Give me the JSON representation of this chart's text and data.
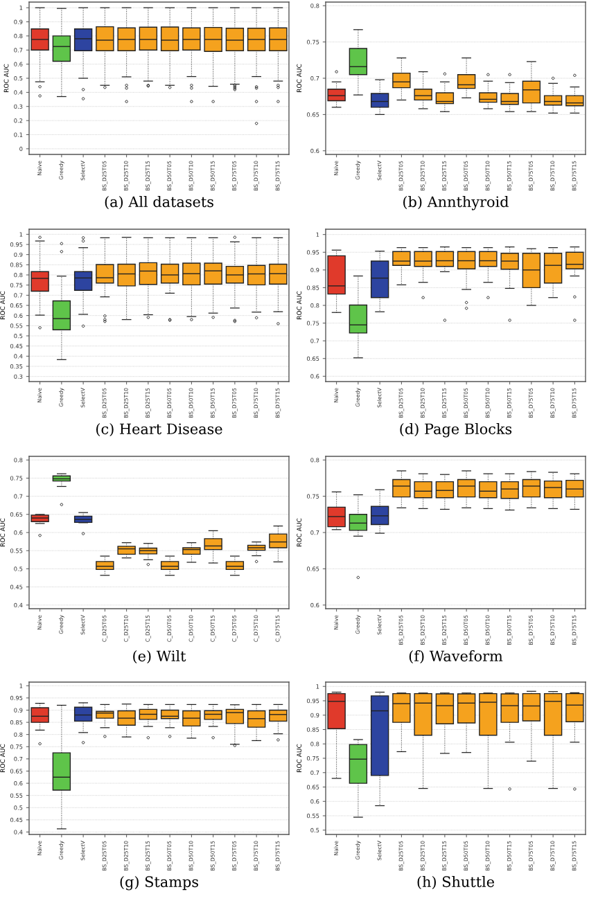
{
  "chart_data": [
    {
      "type": "box",
      "title": "(a) All datasets",
      "ylabel": "ROC AUC",
      "grid": "y",
      "marker": "circle",
      "line_style": "dotted",
      "categories": [
        "Naive",
        "Greedy",
        "SelectV",
        "BS_D25T05",
        "BS_D25T10",
        "BS_D25T15",
        "BS_D50T05",
        "BS_D50T10",
        "BS_D50T15",
        "BS_D75T05",
        "BS_D75T10",
        "BS_D75T15"
      ],
      "colors": [
        "#e03a2b",
        "#5fc44a",
        "#2d44a0",
        "#f5a21e",
        "#f5a21e",
        "#f5a21e",
        "#f5a21e",
        "#f5a21e",
        "#f5a21e",
        "#f5a21e",
        "#f5a21e",
        "#f5a21e"
      ],
      "ylim": [
        -0.04,
        1.04
      ],
      "yticks": [
        0,
        0.1,
        0.2,
        0.3,
        0.4,
        0.5,
        0.6,
        0.7,
        0.8,
        0.9,
        1
      ],
      "boxes": [
        {
          "low": 0.475,
          "q1": 0.7,
          "median": 0.775,
          "q3": 0.85,
          "high": 1,
          "outliers": [
            0.44,
            0.375
          ]
        },
        {
          "low": 0.37,
          "q1": 0.62,
          "median": 0.725,
          "q3": 0.8,
          "high": 0.995
        },
        {
          "low": 0.5,
          "q1": 0.695,
          "median": 0.78,
          "q3": 0.85,
          "high": 1,
          "outliers": [
            0.42,
            0.355
          ]
        },
        {
          "low": 0.45,
          "q1": 0.695,
          "median": 0.77,
          "q3": 0.865,
          "high": 1,
          "outliers": [
            0.435
          ]
        },
        {
          "low": 0.51,
          "q1": 0.695,
          "median": 0.775,
          "q3": 0.857,
          "high": 1,
          "outliers": [
            0.45,
            0.43,
            0.335
          ]
        },
        {
          "low": 0.48,
          "q1": 0.7,
          "median": 0.775,
          "q3": 0.862,
          "high": 1,
          "outliers": [
            0.45,
            0.445
          ]
        },
        {
          "low": 0.45,
          "q1": 0.695,
          "median": 0.77,
          "q3": 0.863,
          "high": 1,
          "outliers": [
            0.435
          ]
        },
        {
          "low": 0.512,
          "q1": 0.7,
          "median": 0.775,
          "q3": 0.857,
          "high": 1,
          "outliers": [
            0.45,
            0.43,
            0.335
          ]
        },
        {
          "low": 0.443,
          "q1": 0.69,
          "median": 0.775,
          "q3": 0.86,
          "high": 1,
          "outliers": [
            0.335
          ]
        },
        {
          "low": 0.458,
          "q1": 0.695,
          "median": 0.77,
          "q3": 0.855,
          "high": 1,
          "outliers": [
            0.45,
            0.44,
            0.43,
            0.42
          ]
        },
        {
          "low": 0.512,
          "q1": 0.695,
          "median": 0.775,
          "q3": 0.855,
          "high": 1,
          "outliers": [
            0.44,
            0.43,
            0.335,
            0.18
          ]
        },
        {
          "low": 0.48,
          "q1": 0.695,
          "median": 0.775,
          "q3": 0.857,
          "high": 1,
          "outliers": [
            0.45,
            0.435,
            0.335
          ]
        }
      ]
    },
    {
      "type": "box",
      "title": "(b) Annthyroid",
      "ylabel": "ROC AUC",
      "grid": "y",
      "marker": "circle",
      "line_style": "dotted",
      "categories": [
        "Naive",
        "Greedy",
        "SelectV",
        "BS_D25T05",
        "BS_D25T10",
        "BS_D25T15",
        "BS_D50T05",
        "BS_D50T10",
        "BS_D50T15",
        "BS_D75T05",
        "BS_D75T10",
        "BS_D75T15"
      ],
      "colors": [
        "#e03a2b",
        "#5fc44a",
        "#2d44a0",
        "#f5a21e",
        "#f5a21e",
        "#f5a21e",
        "#f5a21e",
        "#f5a21e",
        "#f5a21e",
        "#f5a21e",
        "#f5a21e",
        "#f5a21e"
      ],
      "ylim": [
        0.595,
        0.805
      ],
      "yticks": [
        0.6,
        0.65,
        0.7,
        0.75,
        0.8
      ],
      "boxes": [
        {
          "low": 0.66,
          "q1": 0.669,
          "median": 0.676,
          "q3": 0.685,
          "high": 0.695,
          "outliers": [
            0.709
          ]
        },
        {
          "low": 0.677,
          "q1": 0.705,
          "median": 0.716,
          "q3": 0.741,
          "high": 0.767
        },
        {
          "low": 0.65,
          "q1": 0.66,
          "median": 0.668,
          "q3": 0.679,
          "high": 0.698
        },
        {
          "low": 0.67,
          "q1": 0.687,
          "median": 0.695,
          "q3": 0.707,
          "high": 0.728
        },
        {
          "low": 0.658,
          "q1": 0.67,
          "median": 0.676,
          "q3": 0.685,
          "high": 0.709
        },
        {
          "low": 0.654,
          "q1": 0.665,
          "median": 0.668,
          "q3": 0.68,
          "high": 0.695,
          "outliers": [
            0.706
          ]
        },
        {
          "low": 0.673,
          "q1": 0.686,
          "median": 0.691,
          "q3": 0.705,
          "high": 0.728
        },
        {
          "low": 0.658,
          "q1": 0.667,
          "median": 0.671,
          "q3": 0.68,
          "high": 0.696,
          "outliers": [
            0.705
          ]
        },
        {
          "low": 0.654,
          "q1": 0.664,
          "median": 0.668,
          "q3": 0.679,
          "high": 0.694,
          "outliers": [
            0.705
          ]
        },
        {
          "low": 0.654,
          "q1": 0.666,
          "median": 0.684,
          "q3": 0.696,
          "high": 0.723
        },
        {
          "low": 0.652,
          "q1": 0.663,
          "median": 0.668,
          "q3": 0.676,
          "high": 0.693,
          "outliers": [
            0.7
          ]
        },
        {
          "low": 0.652,
          "q1": 0.662,
          "median": 0.666,
          "q3": 0.676,
          "high": 0.688,
          "outliers": [
            0.704
          ]
        }
      ]
    },
    {
      "type": "box",
      "title": "(c) Heart Disease",
      "ylabel": "ROC AUC",
      "grid": "y",
      "marker": "circle",
      "line_style": "dotted",
      "categories": [
        "Naive",
        "Greedy",
        "SelectV",
        "BS_D25T05",
        "BS_D25T10",
        "BS_D25T15",
        "BS_D50T05",
        "BS_D50T10",
        "BS_D50T15",
        "BS_D75T05",
        "BS_D75T10",
        "BS_D75T15"
      ],
      "colors": [
        "#e03a2b",
        "#5fc44a",
        "#2d44a0",
        "#f5a21e",
        "#f5a21e",
        "#f5a21e",
        "#f5a21e",
        "#f5a21e",
        "#f5a21e",
        "#f5a21e",
        "#f5a21e",
        "#f5a21e"
      ],
      "ylim": [
        0.275,
        1.025
      ],
      "yticks": [
        0.3,
        0.35,
        0.4,
        0.45,
        0.5,
        0.55,
        0.6,
        0.65,
        0.7,
        0.75,
        0.8,
        0.85,
        0.9,
        0.95,
        1
      ],
      "boxes": [
        {
          "low": 0.602,
          "q1": 0.72,
          "median": 0.783,
          "q3": 0.816,
          "high": 0.967,
          "outliers": [
            0.985,
            0.54
          ]
        },
        {
          "low": 0.383,
          "q1": 0.53,
          "median": 0.585,
          "q3": 0.672,
          "high": 0.794,
          "outliers": [
            0.954,
            0.915
          ]
        },
        {
          "low": 0.606,
          "q1": 0.724,
          "median": 0.785,
          "q3": 0.816,
          "high": 0.934,
          "outliers": [
            0.983,
            0.967,
            0.548
          ]
        },
        {
          "low": 0.692,
          "q1": 0.76,
          "median": 0.786,
          "q3": 0.851,
          "high": 0.983,
          "outliers": [
            0.598,
            0.58,
            0.571
          ]
        },
        {
          "low": 0.58,
          "q1": 0.746,
          "median": 0.805,
          "q3": 0.853,
          "high": 0.985
        },
        {
          "low": 0.604,
          "q1": 0.753,
          "median": 0.819,
          "q3": 0.86,
          "high": 0.983,
          "outliers": [
            0.591
          ]
        },
        {
          "low": 0.71,
          "q1": 0.76,
          "median": 0.8,
          "q3": 0.853,
          "high": 0.983,
          "outliers": [
            0.58,
            0.577
          ]
        },
        {
          "low": 0.595,
          "q1": 0.751,
          "median": 0.806,
          "q3": 0.858,
          "high": 0.983,
          "outliers": [
            0.58
          ]
        },
        {
          "low": 0.612,
          "q1": 0.755,
          "median": 0.82,
          "q3": 0.858,
          "high": 0.983,
          "outliers": [
            0.591
          ]
        },
        {
          "low": 0.637,
          "q1": 0.76,
          "median": 0.8,
          "q3": 0.842,
          "high": 0.963,
          "outliers": [
            0.985,
            0.576,
            0.571
          ]
        },
        {
          "low": 0.617,
          "q1": 0.751,
          "median": 0.805,
          "q3": 0.847,
          "high": 0.983,
          "outliers": [
            0.589
          ]
        },
        {
          "low": 0.619,
          "q1": 0.755,
          "median": 0.806,
          "q3": 0.853,
          "high": 0.983,
          "outliers": [
            0.56
          ]
        }
      ]
    },
    {
      "type": "box",
      "title": "(d) Page Blocks",
      "ylabel": "ROC AUC",
      "grid": "y",
      "marker": "circle",
      "line_style": "dotted",
      "categories": [
        "Naive",
        "Greedy",
        "SelectV",
        "BS_D25T05",
        "BS_D25T10",
        "BS_D25T15",
        "BS_D50T05",
        "BS_D50T10",
        "BS_D50T15",
        "BS_D75T05",
        "BS_D75T10",
        "BS_D75T15"
      ],
      "colors": [
        "#e03a2b",
        "#5fc44a",
        "#2d44a0",
        "#f5a21e",
        "#f5a21e",
        "#f5a21e",
        "#f5a21e",
        "#f5a21e",
        "#f5a21e",
        "#f5a21e",
        "#f5a21e",
        "#f5a21e"
      ],
      "ylim": [
        0.585,
        1.015
      ],
      "yticks": [
        0.6,
        0.65,
        0.7,
        0.75,
        0.8,
        0.85,
        0.9,
        0.95,
        1
      ],
      "boxes": [
        {
          "low": 0.78,
          "q1": 0.832,
          "median": 0.855,
          "q3": 0.94,
          "high": 0.956
        },
        {
          "low": 0.652,
          "q1": 0.722,
          "median": 0.745,
          "q3": 0.801,
          "high": 0.883
        },
        {
          "low": 0.782,
          "q1": 0.822,
          "median": 0.877,
          "q3": 0.925,
          "high": 0.953
        },
        {
          "low": 0.858,
          "q1": 0.913,
          "median": 0.925,
          "q3": 0.952,
          "high": 0.963
        },
        {
          "low": 0.865,
          "q1": 0.91,
          "median": 0.925,
          "q3": 0.952,
          "high": 0.963,
          "outliers": [
            0.822
          ]
        },
        {
          "low": 0.895,
          "q1": 0.91,
          "median": 0.926,
          "q3": 0.952,
          "high": 0.965,
          "outliers": [
            0.758
          ]
        },
        {
          "low": 0.845,
          "q1": 0.903,
          "median": 0.926,
          "q3": 0.952,
          "high": 0.963,
          "outliers": [
            0.808,
            0.792
          ]
        },
        {
          "low": 0.865,
          "q1": 0.91,
          "median": 0.926,
          "q3": 0.952,
          "high": 0.963,
          "outliers": [
            0.822
          ]
        },
        {
          "low": 0.848,
          "q1": 0.902,
          "median": 0.925,
          "q3": 0.947,
          "high": 0.965,
          "outliers": [
            0.758
          ]
        },
        {
          "low": 0.8,
          "q1": 0.85,
          "median": 0.9,
          "q3": 0.947,
          "high": 0.96
        },
        {
          "low": 0.822,
          "q1": 0.863,
          "median": 0.913,
          "q3": 0.947,
          "high": 0.963
        },
        {
          "low": 0.883,
          "q1": 0.903,
          "median": 0.916,
          "q3": 0.95,
          "high": 0.965,
          "outliers": [
            0.824,
            0.758
          ]
        }
      ]
    },
    {
      "type": "box",
      "title": "(e) Wilt",
      "ylabel": "ROC AUC",
      "grid": "y",
      "marker": "circle",
      "line_style": "dotted",
      "categories": [
        "Naive",
        "Greedy",
        "SelectV",
        "C_D25T05",
        "C_D25T10",
        "C_D25T15",
        "C_D50T05",
        "C_D50T10",
        "C_D50T15",
        "C_D75T05",
        "C_D75T10",
        "C_D75T15"
      ],
      "colors": [
        "#e03a2b",
        "#5fc44a",
        "#2d44a0",
        "#f5a21e",
        "#f5a21e",
        "#f5a21e",
        "#f5a21e",
        "#f5a21e",
        "#f5a21e",
        "#f5a21e",
        "#f5a21e",
        "#f5a21e"
      ],
      "ylim": [
        0.39,
        0.81
      ],
      "yticks": [
        0.4,
        0.45,
        0.5,
        0.55,
        0.6,
        0.65,
        0.7,
        0.75,
        0.8
      ],
      "boxes": [
        {
          "low": 0.625,
          "q1": 0.63,
          "median": 0.64,
          "q3": 0.648,
          "high": 0.65,
          "outliers": [
            0.592
          ]
        },
        {
          "low": 0.727,
          "q1": 0.742,
          "median": 0.748,
          "q3": 0.756,
          "high": 0.762,
          "outliers": [
            0.677
          ]
        },
        {
          "low": 0.627,
          "q1": 0.628,
          "median": 0.636,
          "q3": 0.645,
          "high": 0.655,
          "outliers": [
            0.597
          ]
        },
        {
          "low": 0.482,
          "q1": 0.498,
          "median": 0.507,
          "q3": 0.52,
          "high": 0.535
        },
        {
          "low": 0.53,
          "q1": 0.54,
          "median": 0.555,
          "q3": 0.562,
          "high": 0.572
        },
        {
          "low": 0.525,
          "q1": 0.541,
          "median": 0.55,
          "q3": 0.557,
          "high": 0.57,
          "outliers": [
            0.512
          ]
        },
        {
          "low": 0.482,
          "q1": 0.498,
          "median": 0.507,
          "q3": 0.52,
          "high": 0.535
        },
        {
          "low": 0.518,
          "q1": 0.54,
          "median": 0.553,
          "q3": 0.558,
          "high": 0.572
        },
        {
          "low": 0.516,
          "q1": 0.553,
          "median": 0.563,
          "q3": 0.583,
          "high": 0.605
        },
        {
          "low": 0.482,
          "q1": 0.498,
          "median": 0.507,
          "q3": 0.52,
          "high": 0.535
        },
        {
          "low": 0.536,
          "q1": 0.551,
          "median": 0.558,
          "q3": 0.565,
          "high": 0.574,
          "outliers": [
            0.52
          ]
        },
        {
          "low": 0.519,
          "q1": 0.558,
          "median": 0.574,
          "q3": 0.596,
          "high": 0.618
        }
      ]
    },
    {
      "type": "box",
      "title": "(f) Waveform",
      "ylabel": "ROC AUC",
      "grid": "y",
      "marker": "circle",
      "line_style": "dotted",
      "categories": [
        "Naive",
        "Greedy",
        "SelectV",
        "BS_D25T05",
        "BS_D25T10",
        "BS_D25T15",
        "BS_D50T05",
        "BS_D50T10",
        "BS_D50T15",
        "BS_D75T05",
        "BS_D75T10",
        "BS_D75T15"
      ],
      "colors": [
        "#e03a2b",
        "#5fc44a",
        "#2d44a0",
        "#f5a21e",
        "#f5a21e",
        "#f5a21e",
        "#f5a21e",
        "#f5a21e",
        "#f5a21e",
        "#f5a21e",
        "#f5a21e",
        "#f5a21e"
      ],
      "ylim": [
        0.595,
        0.805
      ],
      "yticks": [
        0.6,
        0.65,
        0.7,
        0.75,
        0.8
      ],
      "boxes": [
        {
          "low": 0.704,
          "q1": 0.708,
          "median": 0.722,
          "q3": 0.735,
          "high": 0.756
        },
        {
          "low": 0.695,
          "q1": 0.703,
          "median": 0.713,
          "q3": 0.725,
          "high": 0.752,
          "outliers": [
            0.638
          ]
        },
        {
          "low": 0.699,
          "q1": 0.711,
          "median": 0.723,
          "q3": 0.736,
          "high": 0.759
        },
        {
          "low": 0.734,
          "q1": 0.749,
          "median": 0.764,
          "q3": 0.773,
          "high": 0.785
        },
        {
          "low": 0.733,
          "q1": 0.748,
          "median": 0.757,
          "q3": 0.77,
          "high": 0.781
        },
        {
          "low": 0.732,
          "q1": 0.748,
          "median": 0.758,
          "q3": 0.77,
          "high": 0.78
        },
        {
          "low": 0.734,
          "q1": 0.749,
          "median": 0.764,
          "q3": 0.773,
          "high": 0.785
        },
        {
          "low": 0.733,
          "q1": 0.748,
          "median": 0.757,
          "q3": 0.77,
          "high": 0.781
        },
        {
          "low": 0.731,
          "q1": 0.747,
          "median": 0.76,
          "q3": 0.77,
          "high": 0.781
        },
        {
          "low": 0.734,
          "q1": 0.749,
          "median": 0.764,
          "q3": 0.773,
          "high": 0.784
        },
        {
          "low": 0.733,
          "q1": 0.748,
          "median": 0.762,
          "q3": 0.771,
          "high": 0.783
        },
        {
          "low": 0.732,
          "q1": 0.749,
          "median": 0.76,
          "q3": 0.772,
          "high": 0.781
        }
      ]
    },
    {
      "type": "box",
      "title": "(g) Stamps",
      "ylabel": "ROC AUC",
      "grid": "y",
      "marker": "circle",
      "line_style": "dotted",
      "categories": [
        "Naive",
        "Greedy",
        "SelectV",
        "BS_D25T05",
        "BS_D25T10",
        "BS_D25T15",
        "BS_D50T05",
        "BS_D50T10",
        "BS_D50T15",
        "BS_D75T05",
        "BS_D75T10",
        "BS_D75T15"
      ],
      "colors": [
        "#e03a2b",
        "#5fc44a",
        "#2d44a0",
        "#f5a21e",
        "#f5a21e",
        "#f5a21e",
        "#f5a21e",
        "#f5a21e",
        "#f5a21e",
        "#f5a21e",
        "#f5a21e",
        "#f5a21e"
      ],
      "ylim": [
        0.39,
        1.015
      ],
      "yticks": [
        0.4,
        0.45,
        0.5,
        0.55,
        0.6,
        0.65,
        0.7,
        0.75,
        0.8,
        0.85,
        0.9,
        0.95,
        1
      ],
      "boxes": [
        {
          "low": 0.818,
          "q1": 0.85,
          "median": 0.875,
          "q3": 0.91,
          "high": 0.928,
          "outliers": [
            0.762
          ]
        },
        {
          "low": 0.413,
          "q1": 0.572,
          "median": 0.625,
          "q3": 0.725,
          "high": 0.92
        },
        {
          "low": 0.808,
          "q1": 0.855,
          "median": 0.88,
          "q3": 0.912,
          "high": 0.93,
          "outliers": [
            0.767
          ]
        },
        {
          "low": 0.828,
          "q1": 0.867,
          "median": 0.888,
          "q3": 0.895,
          "high": 0.923,
          "outliers": [
            0.792
          ]
        },
        {
          "low": 0.79,
          "q1": 0.838,
          "median": 0.867,
          "q3": 0.897,
          "high": 0.925
        },
        {
          "low": 0.833,
          "q1": 0.862,
          "median": 0.883,
          "q3": 0.903,
          "high": 0.923,
          "outliers": [
            0.787
          ]
        },
        {
          "low": 0.828,
          "q1": 0.865,
          "median": 0.875,
          "q3": 0.9,
          "high": 0.923,
          "outliers": [
            0.792
          ]
        },
        {
          "low": 0.785,
          "q1": 0.835,
          "median": 0.867,
          "q3": 0.897,
          "high": 0.923
        },
        {
          "low": 0.833,
          "q1": 0.862,
          "median": 0.883,
          "q3": 0.898,
          "high": 0.923,
          "outliers": [
            0.787
          ]
        },
        {
          "low": 0.76,
          "q1": 0.845,
          "median": 0.89,
          "q3": 0.903,
          "high": 0.922,
          "outliers": [
            0.755
          ]
        },
        {
          "low": 0.775,
          "q1": 0.83,
          "median": 0.865,
          "q3": 0.897,
          "high": 0.923
        },
        {
          "low": 0.803,
          "q1": 0.855,
          "median": 0.882,
          "q3": 0.9,
          "high": 0.923,
          "outliers": [
            0.778
          ]
        }
      ]
    },
    {
      "type": "box",
      "title": "(h) Shuttle",
      "ylabel": "ROC AUC",
      "grid": "y",
      "marker": "circle",
      "line_style": "dotted",
      "categories": [
        "Naive",
        "Greedy",
        "SelectV",
        "BS_D25T05",
        "BS_D25T10",
        "BS_D25T15",
        "BS_D50T05",
        "BS_D50T10",
        "BS_D50T15",
        "BS_D75T05",
        "BS_D75T10",
        "BS_D75T15"
      ],
      "colors": [
        "#e03a2b",
        "#5fc44a",
        "#2d44a0",
        "#f5a21e",
        "#f5a21e",
        "#f5a21e",
        "#f5a21e",
        "#f5a21e",
        "#f5a21e",
        "#f5a21e",
        "#f5a21e",
        "#f5a21e"
      ],
      "ylim": [
        0.485,
        1.015
      ],
      "yticks": [
        0.5,
        0.55,
        0.6,
        0.65,
        0.7,
        0.75,
        0.8,
        0.85,
        0.9,
        0.95,
        1
      ],
      "boxes": [
        {
          "low": 0.68,
          "q1": 0.853,
          "median": 0.948,
          "q3": 0.975,
          "high": 0.98
        },
        {
          "low": 0.545,
          "q1": 0.663,
          "median": 0.747,
          "q3": 0.798,
          "high": 0.815
        },
        {
          "low": 0.585,
          "q1": 0.69,
          "median": 0.915,
          "q3": 0.967,
          "high": 0.98
        },
        {
          "low": 0.773,
          "q1": 0.875,
          "median": 0.94,
          "q3": 0.975,
          "high": 0.977
        },
        {
          "low": 0.645,
          "q1": 0.83,
          "median": 0.942,
          "q3": 0.975,
          "high": 0.977
        },
        {
          "low": 0.767,
          "q1": 0.87,
          "median": 0.933,
          "q3": 0.974,
          "high": 0.977
        },
        {
          "low": 0.77,
          "q1": 0.873,
          "median": 0.942,
          "q3": 0.974,
          "high": 0.977
        },
        {
          "low": 0.645,
          "q1": 0.83,
          "median": 0.945,
          "q3": 0.975,
          "high": 0.977
        },
        {
          "low": 0.806,
          "q1": 0.875,
          "median": 0.933,
          "q3": 0.974,
          "high": 0.977,
          "outliers": [
            0.643
          ]
        },
        {
          "low": 0.74,
          "q1": 0.88,
          "median": 0.932,
          "q3": 0.975,
          "high": 0.983
        },
        {
          "low": 0.645,
          "q1": 0.83,
          "median": 0.948,
          "q3": 0.975,
          "high": 0.982
        },
        {
          "low": 0.806,
          "q1": 0.877,
          "median": 0.935,
          "q3": 0.975,
          "high": 0.978,
          "outliers": [
            0.643
          ]
        }
      ]
    }
  ]
}
